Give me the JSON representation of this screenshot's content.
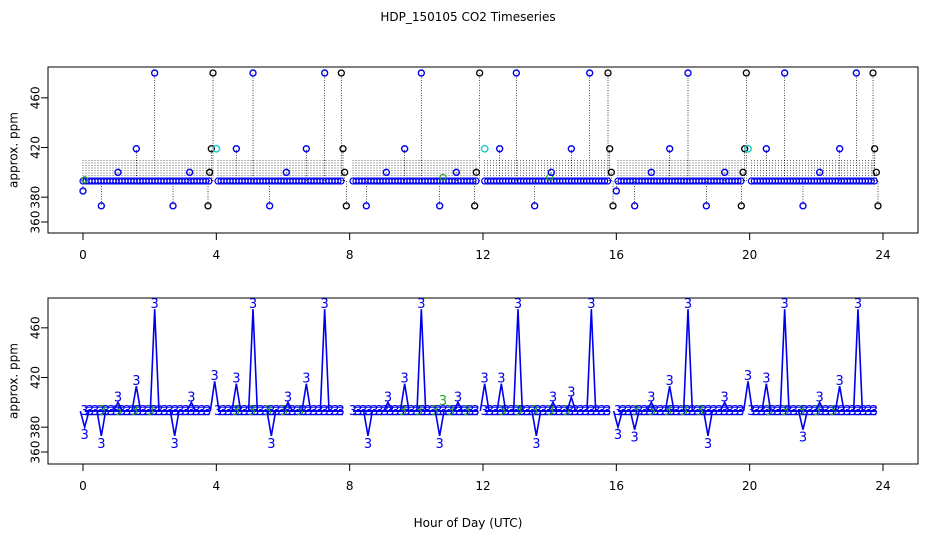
{
  "chart_title": "HDP_150105  CO2 Timeseries",
  "x_axis_label": "Hour of Day (UTC)",
  "colors": {
    "blue": "#0000ee",
    "green": "#22aa22",
    "cyan": "#22cccc",
    "black": "#000000",
    "drop_line": "#000000"
  },
  "chart_data": [
    {
      "type": "scatter",
      "panel": "top",
      "ylabel": "approx. ppm",
      "xlim": [
        0,
        24
      ],
      "ylim": [
        360,
        480
      ],
      "x_ticks": [
        0,
        4,
        8,
        12,
        16,
        20,
        24
      ],
      "y_ticks": [
        360,
        380,
        420,
        460
      ],
      "grid": false,
      "baseline": 393,
      "baseline_segments": [
        [
          0.0,
          3.8
        ],
        [
          4.05,
          7.8
        ],
        [
          8.1,
          11.85
        ],
        [
          12.05,
          15.8
        ],
        [
          16.05,
          19.8
        ],
        [
          20.05,
          23.8
        ]
      ],
      "drop_line_top": 411,
      "points_blue_circle": [
        {
          "x": 0.0,
          "y": 385
        },
        {
          "x": 0.55,
          "y": 373
        },
        {
          "x": 1.05,
          "y": 400
        },
        {
          "x": 1.6,
          "y": 419
        },
        {
          "x": 2.15,
          "y": 480
        },
        {
          "x": 2.7,
          "y": 373
        },
        {
          "x": 3.2,
          "y": 400
        },
        {
          "x": 4.6,
          "y": 419
        },
        {
          "x": 5.1,
          "y": 480
        },
        {
          "x": 5.6,
          "y": 373
        },
        {
          "x": 6.1,
          "y": 400
        },
        {
          "x": 6.7,
          "y": 419
        },
        {
          "x": 7.25,
          "y": 480
        },
        {
          "x": 8.5,
          "y": 373
        },
        {
          "x": 9.1,
          "y": 400
        },
        {
          "x": 9.65,
          "y": 419
        },
        {
          "x": 10.15,
          "y": 480
        },
        {
          "x": 10.7,
          "y": 373
        },
        {
          "x": 11.2,
          "y": 400
        },
        {
          "x": 12.5,
          "y": 419
        },
        {
          "x": 13.0,
          "y": 480
        },
        {
          "x": 13.55,
          "y": 373
        },
        {
          "x": 14.05,
          "y": 400
        },
        {
          "x": 14.65,
          "y": 419
        },
        {
          "x": 15.2,
          "y": 480
        },
        {
          "x": 16.0,
          "y": 385
        },
        {
          "x": 16.55,
          "y": 373
        },
        {
          "x": 17.05,
          "y": 400
        },
        {
          "x": 17.6,
          "y": 419
        },
        {
          "x": 18.15,
          "y": 480
        },
        {
          "x": 18.7,
          "y": 373
        },
        {
          "x": 19.25,
          "y": 400
        },
        {
          "x": 20.5,
          "y": 419
        },
        {
          "x": 21.05,
          "y": 480
        },
        {
          "x": 21.6,
          "y": 373
        },
        {
          "x": 22.1,
          "y": 400
        },
        {
          "x": 22.7,
          "y": 419
        },
        {
          "x": 23.2,
          "y": 480
        }
      ],
      "points_black_circle": [
        {
          "x": 3.75,
          "y": 373
        },
        {
          "x": 3.8,
          "y": 400
        },
        {
          "x": 3.85,
          "y": 419
        },
        {
          "x": 3.9,
          "y": 480
        },
        {
          "x": 7.75,
          "y": 480
        },
        {
          "x": 7.8,
          "y": 419
        },
        {
          "x": 7.85,
          "y": 400
        },
        {
          "x": 7.9,
          "y": 373
        },
        {
          "x": 11.75,
          "y": 373
        },
        {
          "x": 11.8,
          "y": 400
        },
        {
          "x": 11.9,
          "y": 480
        },
        {
          "x": 15.75,
          "y": 480
        },
        {
          "x": 15.8,
          "y": 419
        },
        {
          "x": 15.85,
          "y": 400
        },
        {
          "x": 15.9,
          "y": 373
        },
        {
          "x": 19.75,
          "y": 373
        },
        {
          "x": 19.8,
          "y": 400
        },
        {
          "x": 19.85,
          "y": 419
        },
        {
          "x": 19.9,
          "y": 480
        },
        {
          "x": 23.7,
          "y": 480
        },
        {
          "x": 23.75,
          "y": 419
        },
        {
          "x": 23.8,
          "y": 400
        },
        {
          "x": 23.85,
          "y": 373
        }
      ],
      "points_cyan_circle": [
        {
          "x": 4.0,
          "y": 419
        },
        {
          "x": 12.05,
          "y": 419
        },
        {
          "x": 19.95,
          "y": 419
        }
      ],
      "points_green_circle": [
        {
          "x": 0.05,
          "y": 394
        },
        {
          "x": 10.8,
          "y": 396
        },
        {
          "x": 14.0,
          "y": 396
        }
      ]
    },
    {
      "type": "line",
      "panel": "bottom",
      "ylabel": "approx. ppm",
      "xlim": [
        0,
        24
      ],
      "ylim": [
        360,
        480
      ],
      "x_ticks": [
        0,
        4,
        8,
        12,
        16,
        20,
        24
      ],
      "y_ticks": [
        360,
        380,
        420,
        460
      ],
      "grid": false,
      "point_symbol": "3",
      "baseline": 393,
      "baseline_segments": [
        [
          0.05,
          3.8
        ],
        [
          4.05,
          7.8
        ],
        [
          8.1,
          11.85
        ],
        [
          12.05,
          15.8
        ],
        [
          16.05,
          19.8
        ],
        [
          20.05,
          23.8
        ]
      ],
      "spikes": [
        {
          "x": 0.05,
          "y": 380
        },
        {
          "x": 0.55,
          "y": 373
        },
        {
          "x": 1.05,
          "y": 400
        },
        {
          "x": 1.6,
          "y": 413
        },
        {
          "x": 2.15,
          "y": 475
        },
        {
          "x": 2.75,
          "y": 373
        },
        {
          "x": 3.25,
          "y": 400
        },
        {
          "x": 3.95,
          "y": 417
        },
        {
          "x": 4.6,
          "y": 415
        },
        {
          "x": 5.1,
          "y": 475
        },
        {
          "x": 5.65,
          "y": 373
        },
        {
          "x": 6.15,
          "y": 400
        },
        {
          "x": 6.7,
          "y": 415
        },
        {
          "x": 7.25,
          "y": 475
        },
        {
          "x": 8.55,
          "y": 373
        },
        {
          "x": 9.15,
          "y": 400
        },
        {
          "x": 9.65,
          "y": 415
        },
        {
          "x": 10.15,
          "y": 475
        },
        {
          "x": 10.7,
          "y": 373
        },
        {
          "x": 11.25,
          "y": 400
        },
        {
          "x": 12.05,
          "y": 415
        },
        {
          "x": 12.55,
          "y": 415
        },
        {
          "x": 13.05,
          "y": 475
        },
        {
          "x": 13.6,
          "y": 373
        },
        {
          "x": 14.1,
          "y": 400
        },
        {
          "x": 14.65,
          "y": 404
        },
        {
          "x": 15.25,
          "y": 475
        },
        {
          "x": 16.05,
          "y": 380
        },
        {
          "x": 16.55,
          "y": 378
        },
        {
          "x": 17.05,
          "y": 400
        },
        {
          "x": 17.6,
          "y": 413
        },
        {
          "x": 18.15,
          "y": 475
        },
        {
          "x": 18.75,
          "y": 373
        },
        {
          "x": 19.25,
          "y": 400
        },
        {
          "x": 19.95,
          "y": 417
        },
        {
          "x": 20.5,
          "y": 415
        },
        {
          "x": 21.05,
          "y": 475
        },
        {
          "x": 21.6,
          "y": 378
        },
        {
          "x": 22.1,
          "y": 400
        },
        {
          "x": 22.7,
          "y": 413
        },
        {
          "x": 23.25,
          "y": 475
        }
      ],
      "green_marks": [
        {
          "x": 10.8,
          "y": 398
        }
      ]
    }
  ]
}
